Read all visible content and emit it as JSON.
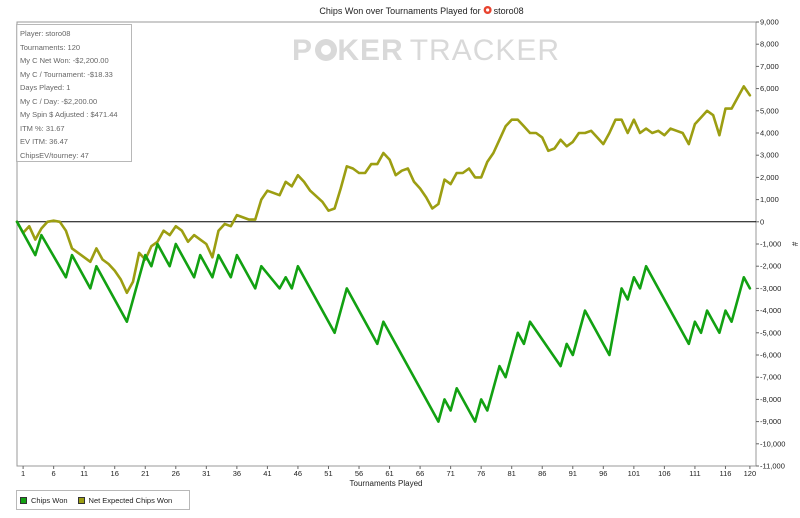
{
  "chart_data": {
    "type": "line",
    "title_prefix": "Chips Won over Tournaments Played for",
    "player": "storo08",
    "xlabel": "Tournaments Played",
    "ylabel": "#",
    "xlim": [
      0,
      121
    ],
    "ylim": [
      -11000,
      9000
    ],
    "xticks": [
      1,
      6,
      11,
      16,
      21,
      26,
      31,
      36,
      41,
      46,
      51,
      56,
      61,
      66,
      71,
      76,
      81,
      86,
      91,
      96,
      101,
      106,
      111,
      116,
      120
    ],
    "yticks": [
      9000,
      8000,
      7000,
      6000,
      5000,
      4000,
      3000,
      2000,
      1000,
      0,
      -1000,
      -2000,
      -3000,
      -4000,
      -5000,
      -6000,
      -7000,
      -8000,
      -9000,
      -10000,
      -11000
    ],
    "ytick_labels": [
      "9,000",
      "8,000",
      "7,000",
      "6,000",
      "5,000",
      "4,000",
      "3,000",
      "2,000",
      "1,000",
      "0",
      "-1,000",
      "-2,000",
      "-3,000",
      "-4,000",
      "-5,000",
      "-6,000",
      "-7,000",
      "-8,000",
      "-9,000",
      "-10,000",
      "-11,000"
    ],
    "series": [
      {
        "name": "Chips Won",
        "color": "#12a112",
        "points": [
          [
            0,
            0
          ],
          [
            3,
            -1500
          ],
          [
            4,
            -600
          ],
          [
            8,
            -2500
          ],
          [
            9,
            -1500
          ],
          [
            12,
            -3000
          ],
          [
            13,
            -2000
          ],
          [
            18,
            -4500
          ],
          [
            21,
            -1500
          ],
          [
            22,
            -2000
          ],
          [
            23,
            -1000
          ],
          [
            25,
            -2000
          ],
          [
            26,
            -1000
          ],
          [
            29,
            -2500
          ],
          [
            30,
            -1500
          ],
          [
            32,
            -2500
          ],
          [
            33,
            -1500
          ],
          [
            35,
            -2500
          ],
          [
            36,
            -1500
          ],
          [
            39,
            -3000
          ],
          [
            40,
            -2000
          ],
          [
            43,
            -3000
          ],
          [
            44,
            -2500
          ],
          [
            45,
            -3000
          ],
          [
            46,
            -2000
          ],
          [
            52,
            -5000
          ],
          [
            54,
            -3000
          ],
          [
            59,
            -5500
          ],
          [
            60,
            -4500
          ],
          [
            69,
            -9000
          ],
          [
            70,
            -8000
          ],
          [
            71,
            -8500
          ],
          [
            72,
            -7500
          ],
          [
            75,
            -9000
          ],
          [
            76,
            -8000
          ],
          [
            77,
            -8500
          ],
          [
            79,
            -6500
          ],
          [
            80,
            -7000
          ],
          [
            82,
            -5000
          ],
          [
            83,
            -5500
          ],
          [
            84,
            -4500
          ],
          [
            89,
            -6500
          ],
          [
            90,
            -5500
          ],
          [
            91,
            -6000
          ],
          [
            93,
            -4000
          ],
          [
            97,
            -6000
          ],
          [
            99,
            -3000
          ],
          [
            100,
            -3500
          ],
          [
            101,
            -2500
          ],
          [
            102,
            -3000
          ],
          [
            103,
            -2000
          ],
          [
            110,
            -5500
          ],
          [
            111,
            -4500
          ],
          [
            112,
            -5000
          ],
          [
            113,
            -4000
          ],
          [
            115,
            -5000
          ],
          [
            116,
            -4000
          ],
          [
            117,
            -4500
          ],
          [
            119,
            -2500
          ],
          [
            120,
            -3000
          ]
        ]
      },
      {
        "name": "Net Expected Chips Won",
        "color": "#9c9e12",
        "points": [
          [
            0,
            0
          ],
          [
            1,
            -500
          ],
          [
            2,
            -200
          ],
          [
            3,
            -800
          ],
          [
            4,
            -300
          ],
          [
            5,
            0
          ],
          [
            6,
            50
          ],
          [
            7,
            0
          ],
          [
            8,
            -400
          ],
          [
            9,
            -1200
          ],
          [
            11,
            -1600
          ],
          [
            12,
            -1800
          ],
          [
            13,
            -1200
          ],
          [
            14,
            -1700
          ],
          [
            15,
            -1900
          ],
          [
            16,
            -2200
          ],
          [
            17,
            -2600
          ],
          [
            18,
            -3200
          ],
          [
            19,
            -2700
          ],
          [
            20,
            -1400
          ],
          [
            21,
            -1700
          ],
          [
            22,
            -1100
          ],
          [
            23,
            -900
          ],
          [
            24,
            -400
          ],
          [
            25,
            -600
          ],
          [
            26,
            -200
          ],
          [
            27,
            -400
          ],
          [
            28,
            -900
          ],
          [
            29,
            -600
          ],
          [
            30,
            -800
          ],
          [
            31,
            -1000
          ],
          [
            32,
            -1600
          ],
          [
            33,
            -400
          ],
          [
            34,
            -100
          ],
          [
            35,
            -200
          ],
          [
            36,
            300
          ],
          [
            37,
            200
          ],
          [
            38,
            100
          ],
          [
            39,
            100
          ],
          [
            40,
            1000
          ],
          [
            41,
            1400
          ],
          [
            43,
            1200
          ],
          [
            44,
            1800
          ],
          [
            45,
            1600
          ],
          [
            46,
            2100
          ],
          [
            47,
            1800
          ],
          [
            48,
            1400
          ],
          [
            50,
            900
          ],
          [
            51,
            500
          ],
          [
            52,
            600
          ],
          [
            53,
            1500
          ],
          [
            54,
            2500
          ],
          [
            55,
            2400
          ],
          [
            56,
            2200
          ],
          [
            57,
            2200
          ],
          [
            58,
            2600
          ],
          [
            59,
            2600
          ],
          [
            60,
            3100
          ],
          [
            61,
            2800
          ],
          [
            62,
            2100
          ],
          [
            63,
            2300
          ],
          [
            64,
            2400
          ],
          [
            65,
            1800
          ],
          [
            66,
            1500
          ],
          [
            67,
            1100
          ],
          [
            68,
            600
          ],
          [
            69,
            800
          ],
          [
            70,
            1900
          ],
          [
            71,
            1700
          ],
          [
            72,
            2200
          ],
          [
            73,
            2200
          ],
          [
            74,
            2400
          ],
          [
            75,
            2000
          ],
          [
            76,
            2000
          ],
          [
            77,
            2700
          ],
          [
            78,
            3100
          ],
          [
            79,
            3700
          ],
          [
            80,
            4300
          ],
          [
            81,
            4600
          ],
          [
            82,
            4600
          ],
          [
            83,
            4300
          ],
          [
            84,
            4000
          ],
          [
            85,
            4000
          ],
          [
            86,
            3800
          ],
          [
            87,
            3200
          ],
          [
            88,
            3300
          ],
          [
            89,
            3700
          ],
          [
            90,
            3400
          ],
          [
            91,
            3600
          ],
          [
            92,
            4000
          ],
          [
            93,
            4000
          ],
          [
            94,
            4100
          ],
          [
            95,
            3800
          ],
          [
            96,
            3500
          ],
          [
            97,
            4000
          ],
          [
            98,
            4600
          ],
          [
            99,
            4600
          ],
          [
            100,
            4000
          ],
          [
            101,
            4600
          ],
          [
            102,
            4000
          ],
          [
            103,
            4200
          ],
          [
            104,
            4000
          ],
          [
            105,
            4100
          ],
          [
            106,
            3900
          ],
          [
            107,
            4200
          ],
          [
            108,
            4100
          ],
          [
            109,
            4000
          ],
          [
            110,
            3500
          ],
          [
            111,
            4400
          ],
          [
            112,
            4700
          ],
          [
            113,
            5000
          ],
          [
            114,
            4800
          ],
          [
            115,
            3900
          ],
          [
            116,
            5100
          ],
          [
            117,
            5100
          ],
          [
            118,
            5600
          ],
          [
            119,
            6100
          ],
          [
            120,
            5700
          ]
        ]
      }
    ]
  },
  "watermark": {
    "part1": "P",
    "part2": "KER",
    "part3": "TRACKER"
  },
  "stats": [
    "Player: storo08",
    "Tournaments: 120",
    "My C Net Won: -$2,200.00",
    "My C / Tournament: -$18.33",
    "Days Played: 1",
    "My C / Day: -$2,200.00",
    "My Spin $ Adjusted : $471.44",
    "ITM %: 31.67",
    "EV ITM: 36.47",
    "ChipsEV/tourney: 47"
  ],
  "colors": {
    "chips_won": "#12a112",
    "net_expected": "#9c9e12",
    "player_icon": "#e8432e"
  },
  "icons": {
    "player": "poker-chip-icon",
    "watermark_o": "spade-chip-icon"
  }
}
